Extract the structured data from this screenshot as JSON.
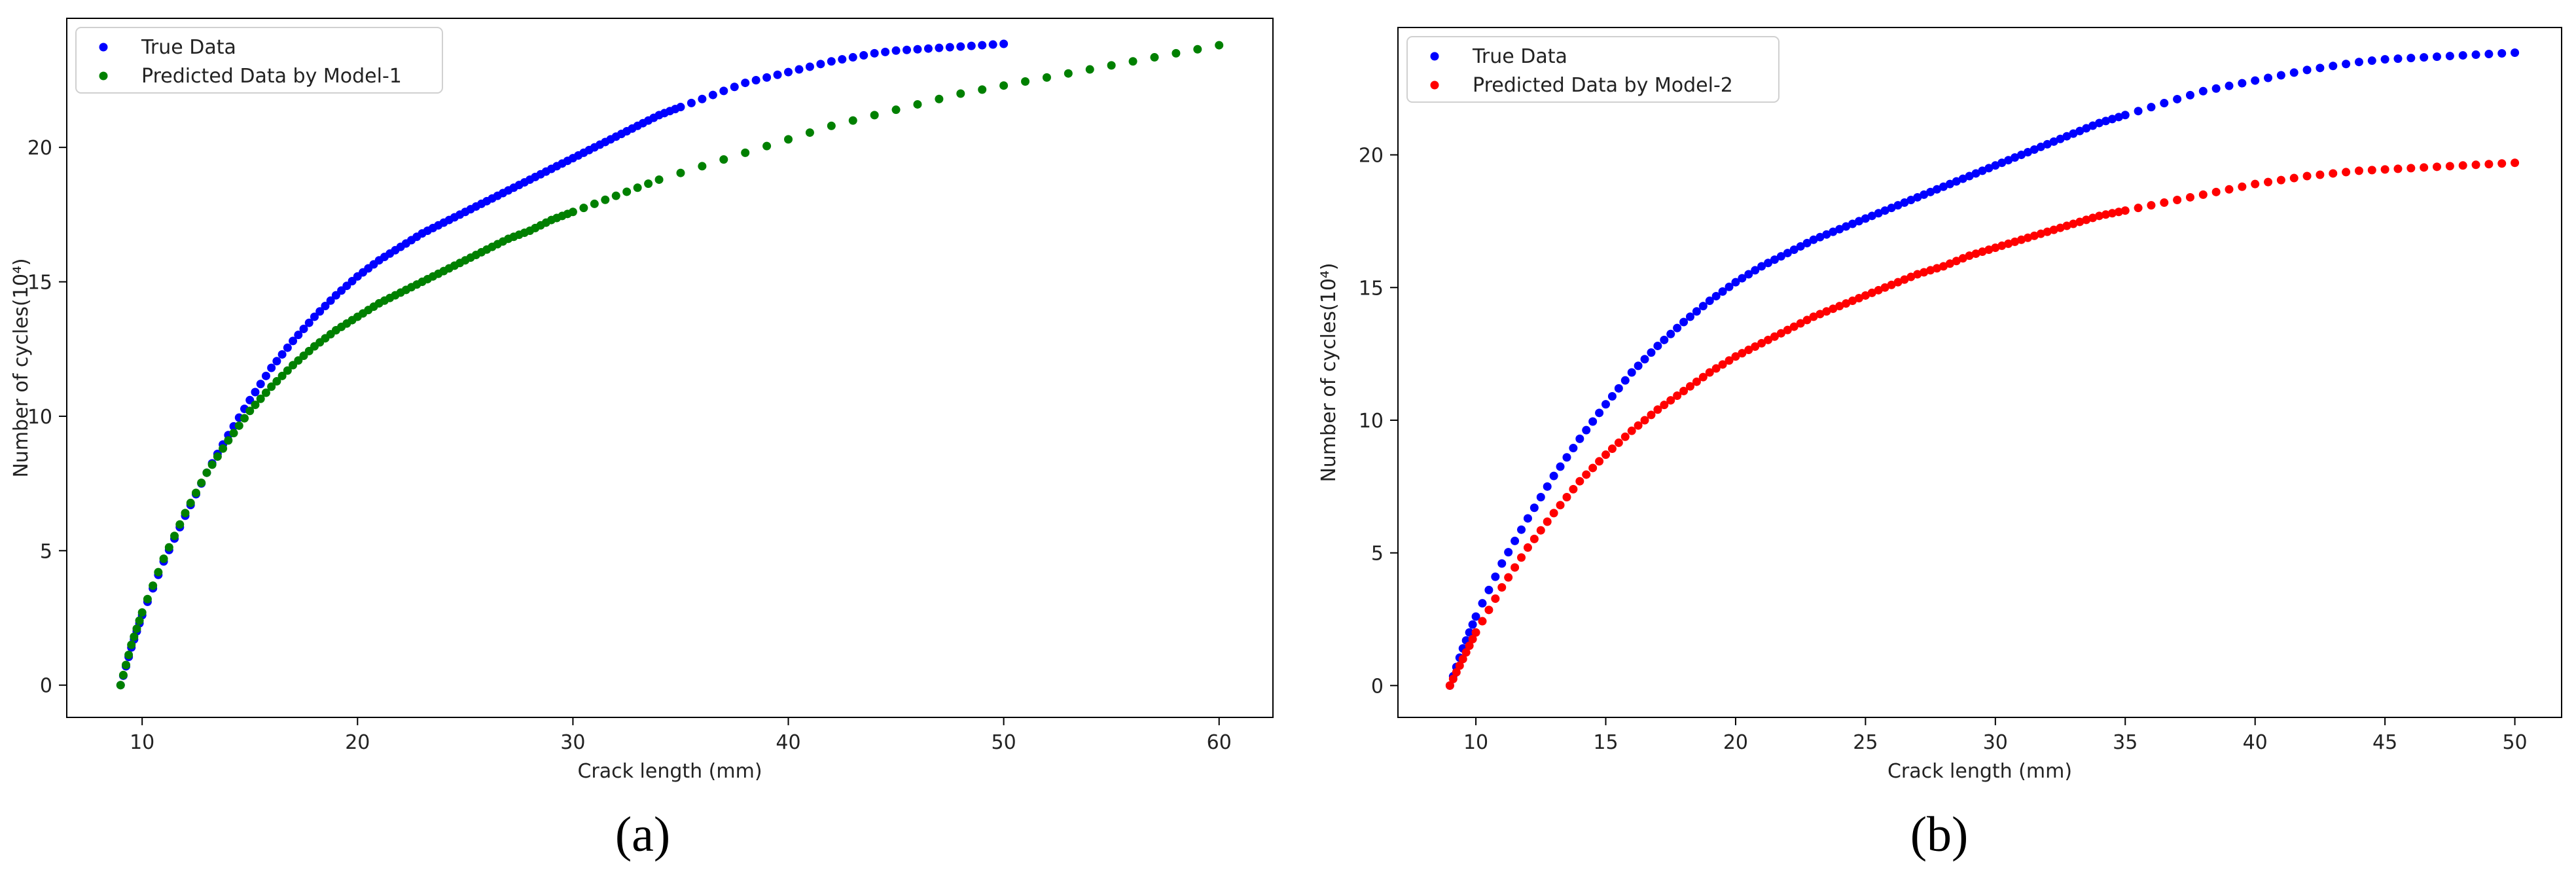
{
  "chart_data": [
    {
      "type": "scatter",
      "panel_label": "(a)",
      "xlabel": "Crack length (mm)",
      "ylabel": "Number of cycles(10⁴)",
      "xlim": [
        6.5,
        62.5
      ],
      "ylim": [
        -1.2,
        24.8
      ],
      "xticks": [
        10,
        20,
        30,
        40,
        50,
        60
      ],
      "yticks": [
        0,
        5,
        10,
        15,
        20
      ],
      "legend_position": "top-left",
      "series": [
        {
          "name": "True Data",
          "color": "#0000ff",
          "points": [
            [
              9.0,
              0.0
            ],
            [
              9.5,
              1.4
            ],
            [
              10.0,
              2.6
            ],
            [
              11.0,
              4.6
            ],
            [
              12.0,
              6.3
            ],
            [
              13.0,
              7.9
            ],
            [
              14.0,
              9.3
            ],
            [
              15.0,
              10.6
            ],
            [
              16.0,
              11.8
            ],
            [
              17.0,
              12.8
            ],
            [
              18.0,
              13.7
            ],
            [
              19.0,
              14.5
            ],
            [
              20.0,
              15.2
            ],
            [
              21.0,
              15.8
            ],
            [
              22.0,
              16.3
            ],
            [
              23.0,
              16.8
            ],
            [
              24.0,
              17.2
            ],
            [
              25.0,
              17.6
            ],
            [
              26.0,
              18.0
            ],
            [
              27.0,
              18.4
            ],
            [
              28.0,
              18.8
            ],
            [
              29.0,
              19.2
            ],
            [
              30.0,
              19.6
            ],
            [
              31.0,
              20.0
            ],
            [
              32.0,
              20.4
            ],
            [
              33.0,
              20.8
            ],
            [
              34.0,
              21.2
            ],
            [
              35.0,
              21.5
            ],
            [
              36.0,
              21.8
            ],
            [
              37.0,
              22.1
            ],
            [
              38.0,
              22.4
            ],
            [
              39.0,
              22.6
            ],
            [
              40.0,
              22.8
            ],
            [
              41.0,
              23.0
            ],
            [
              42.0,
              23.2
            ],
            [
              43.0,
              23.35
            ],
            [
              44.0,
              23.5
            ],
            [
              45.0,
              23.6
            ],
            [
              46.0,
              23.65
            ],
            [
              47.0,
              23.7
            ],
            [
              48.0,
              23.75
            ],
            [
              49.0,
              23.8
            ],
            [
              50.0,
              23.85
            ]
          ]
        },
        {
          "name": "Predicted  Data by Model-1",
          "color": "#008000",
          "points": [
            [
              9.0,
              0.0
            ],
            [
              9.5,
              1.5
            ],
            [
              10.0,
              2.7
            ],
            [
              11.0,
              4.7
            ],
            [
              12.0,
              6.4
            ],
            [
              13.0,
              7.9
            ],
            [
              14.0,
              9.1
            ],
            [
              15.0,
              10.2
            ],
            [
              16.0,
              11.1
            ],
            [
              17.0,
              11.9
            ],
            [
              18.0,
              12.6
            ],
            [
              19.0,
              13.2
            ],
            [
              20.0,
              13.7
            ],
            [
              21.0,
              14.2
            ],
            [
              22.0,
              14.6
            ],
            [
              23.0,
              15.0
            ],
            [
              24.0,
              15.4
            ],
            [
              25.0,
              15.8
            ],
            [
              26.0,
              16.2
            ],
            [
              27.0,
              16.6
            ],
            [
              28.0,
              16.9
            ],
            [
              29.0,
              17.3
            ],
            [
              30.0,
              17.6
            ],
            [
              32.0,
              18.2
            ],
            [
              34.0,
              18.8
            ],
            [
              36.0,
              19.3
            ],
            [
              38.0,
              19.8
            ],
            [
              40.0,
              20.3
            ],
            [
              42.0,
              20.8
            ],
            [
              44.0,
              21.2
            ],
            [
              46.0,
              21.6
            ],
            [
              48.0,
              22.0
            ],
            [
              50.0,
              22.3
            ],
            [
              52.0,
              22.6
            ],
            [
              54.0,
              22.9
            ],
            [
              56.0,
              23.2
            ],
            [
              58.0,
              23.5
            ],
            [
              60.0,
              23.8
            ]
          ]
        }
      ]
    },
    {
      "type": "scatter",
      "panel_label": "(b)",
      "xlabel": "Crack length (mm)",
      "ylabel": "Number of cycles(10⁴)",
      "xlim": [
        7.0,
        51.8
      ],
      "ylim": [
        -1.2,
        24.8
      ],
      "xticks": [
        10,
        15,
        20,
        25,
        30,
        35,
        40,
        45,
        50
      ],
      "yticks": [
        0,
        5,
        10,
        15,
        20
      ],
      "legend_position": "top-left",
      "series": [
        {
          "name": "True Data",
          "color": "#0000ff",
          "points": [
            [
              9.0,
              0.0
            ],
            [
              9.5,
              1.4
            ],
            [
              10.0,
              2.6
            ],
            [
              11.0,
              4.6
            ],
            [
              12.0,
              6.3
            ],
            [
              13.0,
              7.9
            ],
            [
              14.0,
              9.3
            ],
            [
              15.0,
              10.6
            ],
            [
              16.0,
              11.8
            ],
            [
              17.0,
              12.8
            ],
            [
              18.0,
              13.7
            ],
            [
              19.0,
              14.5
            ],
            [
              20.0,
              15.2
            ],
            [
              21.0,
              15.8
            ],
            [
              22.0,
              16.3
            ],
            [
              23.0,
              16.8
            ],
            [
              24.0,
              17.2
            ],
            [
              25.0,
              17.6
            ],
            [
              26.0,
              18.0
            ],
            [
              27.0,
              18.4
            ],
            [
              28.0,
              18.8
            ],
            [
              29.0,
              19.2
            ],
            [
              30.0,
              19.6
            ],
            [
              31.0,
              20.0
            ],
            [
              32.0,
              20.4
            ],
            [
              33.0,
              20.8
            ],
            [
              34.0,
              21.2
            ],
            [
              35.0,
              21.5
            ],
            [
              36.0,
              21.8
            ],
            [
              37.0,
              22.1
            ],
            [
              38.0,
              22.4
            ],
            [
              39.0,
              22.6
            ],
            [
              40.0,
              22.8
            ],
            [
              41.0,
              23.0
            ],
            [
              42.0,
              23.2
            ],
            [
              43.0,
              23.35
            ],
            [
              44.0,
              23.5
            ],
            [
              45.0,
              23.6
            ],
            [
              46.0,
              23.65
            ],
            [
              47.0,
              23.7
            ],
            [
              48.0,
              23.75
            ],
            [
              49.0,
              23.8
            ],
            [
              50.0,
              23.85
            ]
          ]
        },
        {
          "name": "Predicted  Data by Model-2",
          "color": "#ff0000",
          "points": [
            [
              9.0,
              0.0
            ],
            [
              9.5,
              1.0
            ],
            [
              10.0,
              2.0
            ],
            [
              11.0,
              3.7
            ],
            [
              12.0,
              5.2
            ],
            [
              13.0,
              6.5
            ],
            [
              14.0,
              7.7
            ],
            [
              15.0,
              8.7
            ],
            [
              16.0,
              9.6
            ],
            [
              17.0,
              10.4
            ],
            [
              18.0,
              11.1
            ],
            [
              19.0,
              11.8
            ],
            [
              20.0,
              12.4
            ],
            [
              21.0,
              12.9
            ],
            [
              22.0,
              13.4
            ],
            [
              23.0,
              13.9
            ],
            [
              24.0,
              14.3
            ],
            [
              25.0,
              14.7
            ],
            [
              26.0,
              15.1
            ],
            [
              27.0,
              15.5
            ],
            [
              28.0,
              15.8
            ],
            [
              29.0,
              16.2
            ],
            [
              30.0,
              16.5
            ],
            [
              31.0,
              16.8
            ],
            [
              32.0,
              17.1
            ],
            [
              33.0,
              17.4
            ],
            [
              34.0,
              17.7
            ],
            [
              35.0,
              17.9
            ],
            [
              36.0,
              18.1
            ],
            [
              37.0,
              18.3
            ],
            [
              38.0,
              18.5
            ],
            [
              39.0,
              18.7
            ],
            [
              40.0,
              18.9
            ],
            [
              41.0,
              19.05
            ],
            [
              42.0,
              19.2
            ],
            [
              43.0,
              19.3
            ],
            [
              44.0,
              19.4
            ],
            [
              45.0,
              19.45
            ],
            [
              46.0,
              19.5
            ],
            [
              47.0,
              19.55
            ],
            [
              48.0,
              19.6
            ],
            [
              49.0,
              19.65
            ],
            [
              50.0,
              19.7
            ]
          ]
        }
      ]
    }
  ]
}
